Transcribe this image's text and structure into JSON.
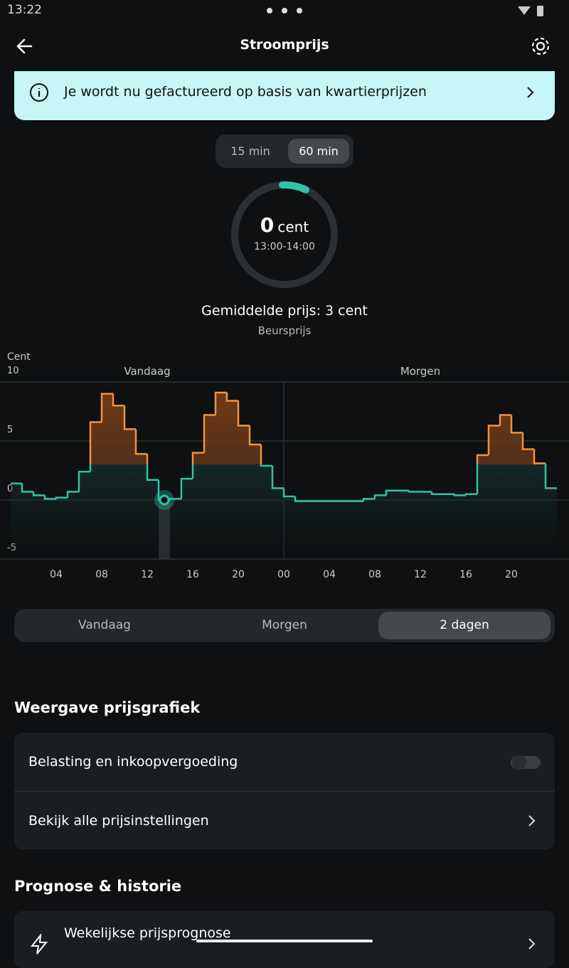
{
  "status": {
    "time": "13:22"
  },
  "header": {
    "title": "Stroomprijs"
  },
  "banner": {
    "text": "Je wordt nu gefactureerd op basis van kwartierprijzen"
  },
  "interval_toggle": [
    "15 min",
    "60 min"
  ],
  "gauge": {
    "value": 0,
    "unit": "cent",
    "time": "13:00-14:00"
  },
  "average": {
    "label": "Gemiddelde prijs:",
    "value": 3,
    "unit": "cent",
    "source": "Beursprijs"
  },
  "chart_data": {
    "type": "step",
    "y_label": "Cent",
    "sections": [
      {
        "label": "Vandaag",
        "x": 12
      },
      {
        "label": "Morgen",
        "x": 36
      }
    ],
    "divider_x": 24,
    "highlight_x": 13,
    "x": [
      0,
      1,
      2,
      3,
      4,
      5,
      6,
      7,
      8,
      9,
      10,
      11,
      12,
      13,
      14,
      15,
      16,
      17,
      18,
      19,
      20,
      21,
      22,
      23,
      24,
      25,
      26,
      27,
      28,
      29,
      30,
      31,
      32,
      33,
      34,
      35,
      36,
      37,
      38,
      39,
      40,
      41,
      42,
      43,
      44,
      45,
      46,
      47
    ],
    "series": [
      {
        "name": "Beursprijs",
        "color": "#2ec4a5",
        "peak_color": "#f5913a",
        "values": [
          1.4,
          0.7,
          0.4,
          0.1,
          0.2,
          0.7,
          2.4,
          6.6,
          9.0,
          8.0,
          6.0,
          3.9,
          1.7,
          0,
          0.1,
          1.8,
          4.0,
          7.2,
          9.1,
          8.4,
          6.3,
          4.7,
          2.9,
          1.0,
          0.3,
          -0.1,
          -0.1,
          -0.1,
          -0.1,
          -0.1,
          -0.1,
          0.1,
          0.4,
          0.8,
          0.8,
          0.7,
          0.7,
          0.5,
          0.5,
          0.4,
          0.5,
          3.8,
          6.3,
          7.2,
          5.7,
          4.3,
          3.1,
          1.0
        ]
      }
    ],
    "xlim": [
      0,
      48
    ],
    "xticks": [
      {
        "value": 4,
        "label": "04"
      },
      {
        "value": 8,
        "label": "08"
      },
      12,
      16,
      20,
      {
        "value": 24,
        "label": "00"
      },
      {
        "value": 28,
        "label": "04"
      },
      {
        "value": 32,
        "label": "08"
      },
      {
        "value": 36,
        "label": "12"
      },
      {
        "value": 40,
        "label": "16"
      },
      {
        "value": 44,
        "label": "20"
      }
    ],
    "ylim": [
      -5,
      10
    ],
    "yticks": [
      -5,
      0,
      5,
      10
    ],
    "grid": true
  },
  "period_tabs": [
    "Vandaag",
    "Morgen",
    "2 dagen"
  ],
  "sections": [
    {
      "title": "Weergave prijsgrafiek",
      "rows": [
        "Belasting en inkoopvergoeding",
        "Bekijk alle prijsinstellingen"
      ]
    },
    {
      "title": "Prognose & historie",
      "rows": [
        "Wekelijkse prijsprognose"
      ]
    }
  ]
}
